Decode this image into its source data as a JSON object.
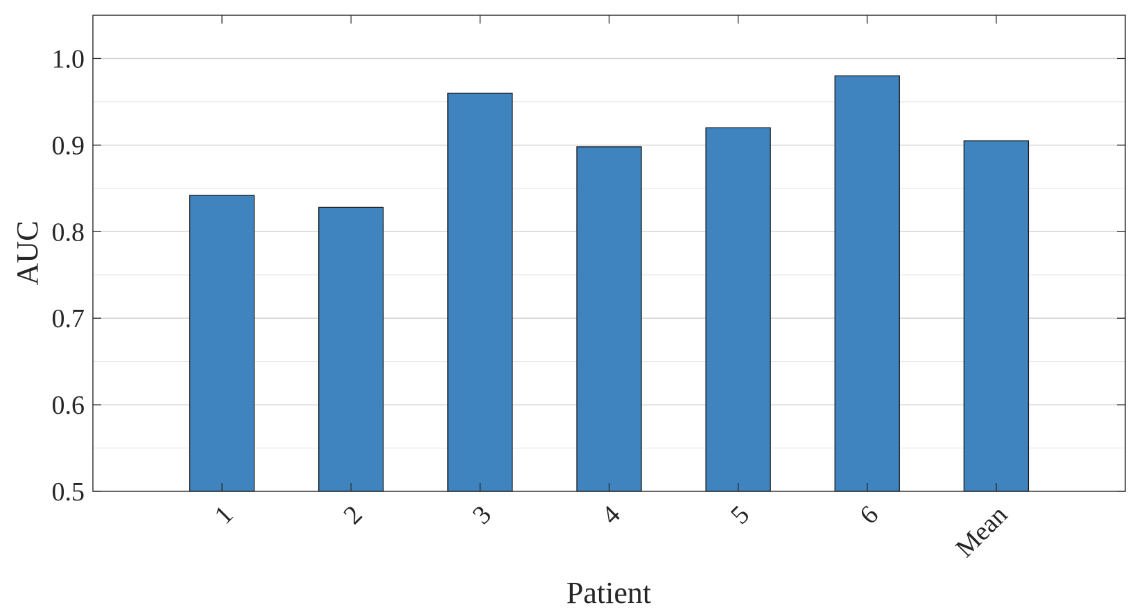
{
  "chart_data": {
    "type": "bar",
    "categories": [
      "1",
      "2",
      "3",
      "4",
      "5",
      "6",
      "Mean"
    ],
    "values": [
      0.842,
      0.828,
      0.96,
      0.898,
      0.92,
      0.98,
      0.905
    ],
    "title": "",
    "xlabel": "Patient",
    "ylabel": "AUC",
    "ylim": [
      0.5,
      1.05
    ],
    "yticks": [
      "0.5",
      "0.6",
      "0.7",
      "0.8",
      "0.9",
      "1.0"
    ],
    "grid": true,
    "bar_color": "#3f84bf"
  }
}
